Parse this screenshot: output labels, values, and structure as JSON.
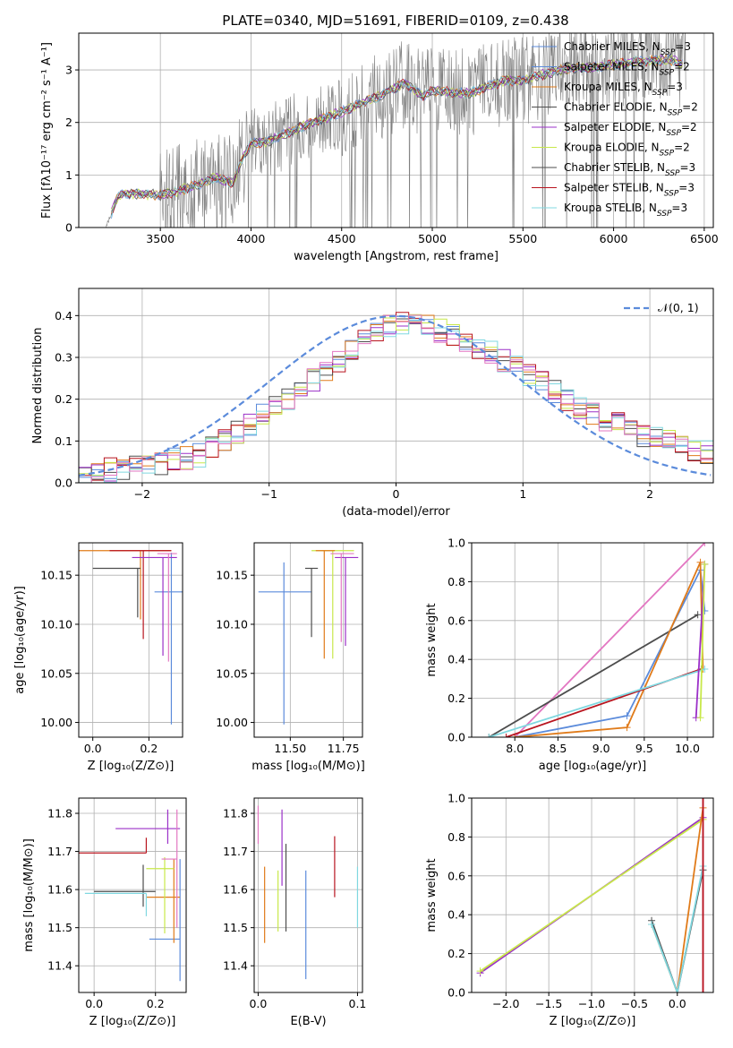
{
  "figure": {
    "title": "PLATE=0340, MJD=51691, FIBERID=0109, z=0.438"
  },
  "colors": {
    "data": "#7f7f7f",
    "normal_curve": "#5b8bdb",
    "chabrier_miles": "#5b8bdb",
    "salpeter_miles": "#5b8bdb",
    "kroupa_miles": "#e07b1a",
    "chabrier_elodie": "#4d4d4d",
    "salpeter_elodie": "#9b30c8",
    "kroupa_elodie": "#c8e84a",
    "chabrier_stelib": "#4d4d4d",
    "salpeter_stelib": "#b8141e",
    "kroupa_stelib": "#80d8e0",
    "pink": "#e377c2"
  },
  "chart_data": [
    {
      "type": "line",
      "panel": "spectrum",
      "xlabel": "wavelength [Angstrom, rest frame]",
      "ylabel": "Flux [fλ10⁻¹⁷ erg cm⁻² s⁻¹ A⁻¹]",
      "xlim": [
        3050,
        6550
      ],
      "ylim": [
        0,
        3.7
      ],
      "xticks": [
        3500,
        4000,
        4500,
        5000,
        5500,
        6000,
        6500
      ],
      "yticks": [
        0,
        1,
        2,
        3
      ],
      "continuum_nodes": {
        "x": [
          3200,
          3260,
          3300,
          3500,
          3600,
          3700,
          3800,
          3900,
          3950,
          4000,
          4100,
          4200,
          4300,
          4500,
          4700,
          4850,
          4950,
          5000,
          5200,
          5400,
          5500,
          5700,
          5900,
          6100,
          6300,
          6400
        ],
        "y": [
          0.0,
          0.55,
          0.65,
          0.62,
          0.7,
          0.8,
          0.95,
          0.85,
          1.3,
          1.6,
          1.65,
          1.8,
          1.95,
          2.2,
          2.5,
          2.75,
          2.5,
          2.6,
          2.55,
          2.8,
          2.8,
          3.0,
          3.05,
          3.15,
          3.2,
          3.1
        ]
      },
      "legend": [
        "Chabrier MILES, N_SSP=3",
        "Salpeter MILES, N_SSP=2",
        "Kroupa MILES, N_SSP=3",
        "Chabrier ELODIE, N_SSP=2",
        "Salpeter ELODIE, N_SSP=2",
        "Kroupa ELODIE, N_SSP=2",
        "Chabrier STELIB, N_SSP=3",
        "Salpeter STELIB, N_SSP=3",
        "Kroupa STELIB, N_SSP=3"
      ],
      "legend_colors": [
        "chabrier_miles",
        "salpeter_miles",
        "kroupa_miles",
        "chabrier_elodie",
        "salpeter_elodie",
        "kroupa_elodie",
        "chabrier_stelib",
        "salpeter_stelib",
        "kroupa_stelib"
      ]
    },
    {
      "type": "bar",
      "panel": "residuals",
      "xlabel": "(data-model)/error",
      "ylabel": "Normed distribution",
      "xlim": [
        -2.5,
        2.5
      ],
      "ylim": [
        0,
        0.465
      ],
      "xticks": [
        -2,
        -1,
        0,
        1,
        2
      ],
      "yticks": [
        0.0,
        0.1,
        0.2,
        0.3,
        0.4
      ],
      "legend": "𝒩(0, 1)",
      "bin_width": 0.1,
      "histogram_envelope": {
        "x": [
          -2.5,
          -2.0,
          -1.5,
          -1.0,
          -0.5,
          -0.2,
          0.0,
          0.3,
          0.7,
          1.0,
          1.5,
          2.0,
          2.5
        ],
        "y": [
          0.02,
          0.04,
          0.07,
          0.17,
          0.28,
          0.35,
          0.38,
          0.37,
          0.32,
          0.27,
          0.17,
          0.11,
          0.07
        ]
      },
      "hist_colors": [
        "chabrier_miles",
        "kroupa_miles",
        "chabrier_elodie",
        "salpeter_elodie",
        "kroupa_elodie",
        "salpeter_stelib",
        "kroupa_stelib",
        "pink"
      ]
    },
    {
      "type": "scatter",
      "panel": "age_vs_Z",
      "xlabel": "Z [log₁₀(Z/Z⊙)]",
      "ylabel": "age  [log₁₀(age/yr)]",
      "xlim": [
        -0.05,
        0.32
      ],
      "ylim": [
        9.985,
        10.183
      ],
      "xticks": [
        0.0,
        0.2
      ],
      "yticks": [
        10.0,
        10.05,
        10.1,
        10.15
      ],
      "points": [
        {
          "x": 0.17,
          "y": 10.175,
          "xerr": [
            0.24,
            0.11
          ],
          "yerr": [
            0.07,
            0.0
          ],
          "color": "kroupa_miles"
        },
        {
          "x": 0.18,
          "y": 10.175,
          "xerr": [
            0.12,
            0.1
          ],
          "yerr": [
            0.09,
            0.0
          ],
          "color": "salpeter_stelib"
        },
        {
          "x": 0.16,
          "y": 10.157,
          "xerr": [
            0.16,
            0.01
          ],
          "yerr": [
            0.05,
            0.0
          ],
          "color": "chabrier_stelib"
        },
        {
          "x": 0.28,
          "y": 10.133,
          "xerr": [
            0.06,
            0.04
          ],
          "yerr": [
            0.135,
            0.04
          ],
          "color": "chabrier_miles"
        },
        {
          "x": 0.25,
          "y": 10.168,
          "xerr": [
            0.11,
            0.05
          ],
          "yerr": [
            0.1,
            0.0
          ],
          "color": "salpeter_elodie"
        },
        {
          "x": 0.27,
          "y": 10.172,
          "xerr": [
            0.04,
            0.03
          ],
          "yerr": [
            0.11,
            0.0
          ],
          "color": "pink"
        }
      ]
    },
    {
      "type": "scatter",
      "panel": "age_vs_mass",
      "xlabel": "mass [log₁₀(M/M⊙)]",
      "ylabel": "",
      "xlim": [
        11.33,
        11.84
      ],
      "ylim": [
        9.985,
        10.183
      ],
      "xticks": [
        11.5,
        11.75
      ],
      "yticks": [
        10.0,
        10.05,
        10.1,
        10.15
      ],
      "points": [
        {
          "x": 11.47,
          "y": 10.133,
          "xerr": [
            0.12,
            0.13
          ],
          "yerr": [
            0.135,
            0.03
          ],
          "color": "chabrier_miles"
        },
        {
          "x": 11.7,
          "y": 10.175,
          "xerr": [
            0.1,
            0.1
          ],
          "yerr": [
            0.11,
            0.0
          ],
          "color": "kroupa_elodie"
        },
        {
          "x": 11.76,
          "y": 10.168,
          "xerr": [
            0.05,
            0.06
          ],
          "yerr": [
            0.09,
            0.0
          ],
          "color": "salpeter_elodie"
        },
        {
          "x": 11.6,
          "y": 10.157,
          "xerr": [
            0.03,
            0.03
          ],
          "yerr": [
            0.07,
            0.0
          ],
          "color": "chabrier_stelib"
        },
        {
          "x": 11.66,
          "y": 10.175,
          "xerr": [
            0.04,
            0.05
          ],
          "yerr": [
            0.11,
            0.0
          ],
          "color": "kroupa_miles"
        },
        {
          "x": 11.74,
          "y": 10.172,
          "xerr": [
            0.05,
            0.06
          ],
          "yerr": [
            0.09,
            0.0
          ],
          "color": "pink"
        }
      ]
    },
    {
      "type": "line",
      "panel": "mass_weight_vs_age",
      "xlabel": "age  [log₁₀(age/yr)]",
      "ylabel": "mass weight",
      "xlim": [
        7.5,
        10.3
      ],
      "ylim": [
        0,
        1.0
      ],
      "xticks": [
        8.0,
        8.5,
        9.0,
        9.5,
        10.0
      ],
      "yticks": [
        0.0,
        0.2,
        0.4,
        0.6,
        0.8,
        1.0
      ],
      "series": [
        {
          "color": "pink",
          "x": [
            8.0,
            10.2
          ],
          "y": [
            0.0,
            1.0
          ]
        },
        {
          "color": "chabrier_stelib",
          "x": [
            7.7,
            10.12
          ],
          "y": [
            0.0,
            0.63
          ]
        },
        {
          "color": "chabrier_miles",
          "x": [
            8.0,
            9.3,
            10.15,
            10.2
          ],
          "y": [
            0.0,
            0.11,
            0.86,
            0.65
          ]
        },
        {
          "color": "kroupa_miles",
          "x": [
            8.0,
            9.3,
            10.15,
            10.18
          ],
          "y": [
            0.0,
            0.05,
            0.9,
            0.35
          ]
        },
        {
          "color": "salpeter_stelib",
          "x": [
            7.9,
            10.16
          ],
          "y": [
            0.0,
            0.35
          ]
        },
        {
          "color": "kroupa_stelib",
          "x": [
            7.7,
            10.2
          ],
          "y": [
            0.0,
            0.35
          ]
        },
        {
          "color": "salpeter_elodie",
          "x": [
            10.1,
            10.2
          ],
          "y": [
            0.1,
            0.89
          ]
        },
        {
          "color": "kroupa_elodie",
          "x": [
            10.15,
            10.2
          ],
          "y": [
            0.1,
            0.89
          ]
        }
      ]
    },
    {
      "type": "scatter",
      "panel": "mass_vs_Z",
      "xlabel": "Z [log₁₀(Z/Z⊙)]",
      "ylabel": "mass [log₁₀(M/M⊙)]",
      "xlim": [
        -0.05,
        0.3
      ],
      "ylim": [
        11.33,
        11.84
      ],
      "xticks": [
        0.0,
        0.2
      ],
      "yticks": [
        11.4,
        11.5,
        11.6,
        11.7,
        11.8
      ],
      "points": [
        {
          "x": 0.17,
          "y": 11.696,
          "xerr": [
            0.3,
            0.0
          ],
          "yerr": [
            0.0,
            0.04
          ],
          "color": "salpeter_stelib"
        },
        {
          "x": 0.16,
          "y": 11.595,
          "xerr": [
            0.16,
            0.04
          ],
          "yerr": [
            0.04,
            0.07
          ],
          "color": "chabrier_stelib"
        },
        {
          "x": 0.24,
          "y": 11.76,
          "xerr": [
            0.17,
            0.04
          ],
          "yerr": [
            0.04,
            0.05
          ],
          "color": "salpeter_elodie"
        },
        {
          "x": 0.28,
          "y": 11.47,
          "xerr": [
            0.1,
            0.0
          ],
          "yerr": [
            0.11,
            0.21
          ],
          "color": "chabrier_miles"
        },
        {
          "x": 0.26,
          "y": 11.58,
          "xerr": [
            0.09,
            0.02
          ],
          "yerr": [
            0.12,
            0.1
          ],
          "color": "kroupa_miles"
        },
        {
          "x": 0.23,
          "y": 11.655,
          "xerr": [
            0.06,
            0.03
          ],
          "yerr": [
            0.17,
            0.03
          ],
          "color": "kroupa_elodie"
        },
        {
          "x": 0.17,
          "y": 11.59,
          "xerr": [
            0.2,
            0.0
          ],
          "yerr": [
            0.06,
            0.0
          ],
          "color": "kroupa_stelib"
        },
        {
          "x": 0.27,
          "y": 11.68,
          "xerr": [
            0.05,
            0.0
          ],
          "yerr": [
            0.18,
            0.13
          ],
          "color": "pink"
        }
      ]
    },
    {
      "type": "scatter",
      "panel": "mass_vs_ebv",
      "xlabel": "E(B-V)",
      "ylabel": "",
      "xlim": [
        -0.004,
        0.105
      ],
      "ylim": [
        11.33,
        11.84
      ],
      "xticks": [
        0.0,
        0.1
      ],
      "yticks": [
        11.4,
        11.5,
        11.6,
        11.7,
        11.8
      ],
      "points": [
        {
          "x": 0.0,
          "y": 11.77,
          "xerr": [
            0,
            0
          ],
          "yerr": [
            0.05,
            0.05
          ],
          "color": "pink"
        },
        {
          "x": 0.0065,
          "y": 11.56,
          "xerr": [
            0,
            0
          ],
          "yerr": [
            0.1,
            0.1
          ],
          "color": "kroupa_miles"
        },
        {
          "x": 0.02,
          "y": 11.58,
          "xerr": [
            0,
            0
          ],
          "yerr": [
            0.09,
            0.07
          ],
          "color": "kroupa_elodie"
        },
        {
          "x": 0.024,
          "y": 11.71,
          "xerr": [
            0,
            0
          ],
          "yerr": [
            0.1,
            0.1
          ],
          "color": "salpeter_elodie"
        },
        {
          "x": 0.028,
          "y": 11.64,
          "xerr": [
            0,
            0
          ],
          "yerr": [
            0.15,
            0.08
          ],
          "color": "chabrier_stelib"
        },
        {
          "x": 0.048,
          "y": 11.535,
          "xerr": [
            0,
            0
          ],
          "yerr": [
            0.17,
            0.115
          ],
          "color": "chabrier_miles"
        },
        {
          "x": 0.077,
          "y": 11.66,
          "xerr": [
            0,
            0
          ],
          "yerr": [
            0.08,
            0.08
          ],
          "color": "salpeter_stelib"
        },
        {
          "x": 0.1,
          "y": 11.6,
          "xerr": [
            0,
            0
          ],
          "yerr": [
            0.1,
            0.06
          ],
          "color": "kroupa_stelib"
        }
      ]
    },
    {
      "type": "line",
      "panel": "mass_weight_vs_Z",
      "xlabel": "Z [log₁₀(Z/Z⊙)]",
      "ylabel": "mass weight",
      "xlim": [
        -2.4,
        0.42
      ],
      "ylim": [
        0,
        1.0
      ],
      "xticks": [
        -2.0,
        -1.5,
        -1.0,
        -0.5,
        0.0
      ],
      "yticks": [
        0.0,
        0.2,
        0.4,
        0.6,
        0.8,
        1.0
      ],
      "series": [
        {
          "color": "salpeter_elodie",
          "x": [
            -2.3,
            0.3
          ],
          "y": [
            0.1,
            0.9
          ]
        },
        {
          "color": "kroupa_elodie",
          "x": [
            -2.3,
            0.3
          ],
          "y": [
            0.11,
            0.89
          ]
        },
        {
          "color": "kroupa_miles",
          "x": [
            -0.3,
            0.0,
            0.3
          ],
          "y": [
            0.35,
            0.0,
            0.95
          ]
        },
        {
          "color": "chabrier_stelib",
          "x": [
            -0.3,
            0.0,
            0.3
          ],
          "y": [
            0.37,
            0.0,
            0.63
          ]
        },
        {
          "color": "kroupa_stelib",
          "x": [
            -0.3,
            0.0,
            0.3
          ],
          "y": [
            0.35,
            0.0,
            0.65
          ]
        },
        {
          "color": "pink",
          "x": [
            0.3,
            0.3
          ],
          "y": [
            0.0,
            1.0
          ]
        },
        {
          "color": "salpeter_stelib",
          "x": [
            0.3,
            0.3
          ],
          "y": [
            0.0,
            1.0
          ]
        }
      ]
    }
  ]
}
